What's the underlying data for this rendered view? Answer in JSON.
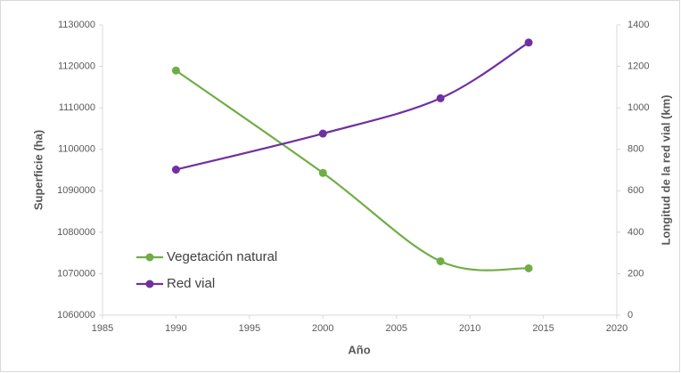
{
  "chart_data": {
    "type": "line",
    "x": [
      1990,
      2000,
      2008,
      2014
    ],
    "series": [
      {
        "name": "Vegetación natural",
        "color": "#70ad47",
        "values": [
          1119000,
          1094300,
          1073000,
          1071300
        ]
      },
      {
        "name": "Red vial",
        "color": "#7030a0",
        "axis": "y2",
        "values": [
          702,
          876,
          1046,
          1315
        ]
      }
    ],
    "xlabel": "Año",
    "ylabel": "Superficie (ha)",
    "y2label": "Longitud de la red vial (km)",
    "xlim": [
      1985,
      2020
    ],
    "xticks": [
      1985,
      1990,
      1995,
      2000,
      2005,
      2010,
      2015,
      2020
    ],
    "ylim": [
      1060000,
      1130000
    ],
    "yticks": [
      1060000,
      1070000,
      1080000,
      1090000,
      1100000,
      1110000,
      1120000,
      1130000
    ],
    "y2lim": [
      0,
      1400
    ],
    "y2ticks": [
      0,
      200,
      400,
      600,
      800,
      1000,
      1200,
      1400
    ],
    "smooth": true,
    "grid": false,
    "legend": "lower left"
  }
}
